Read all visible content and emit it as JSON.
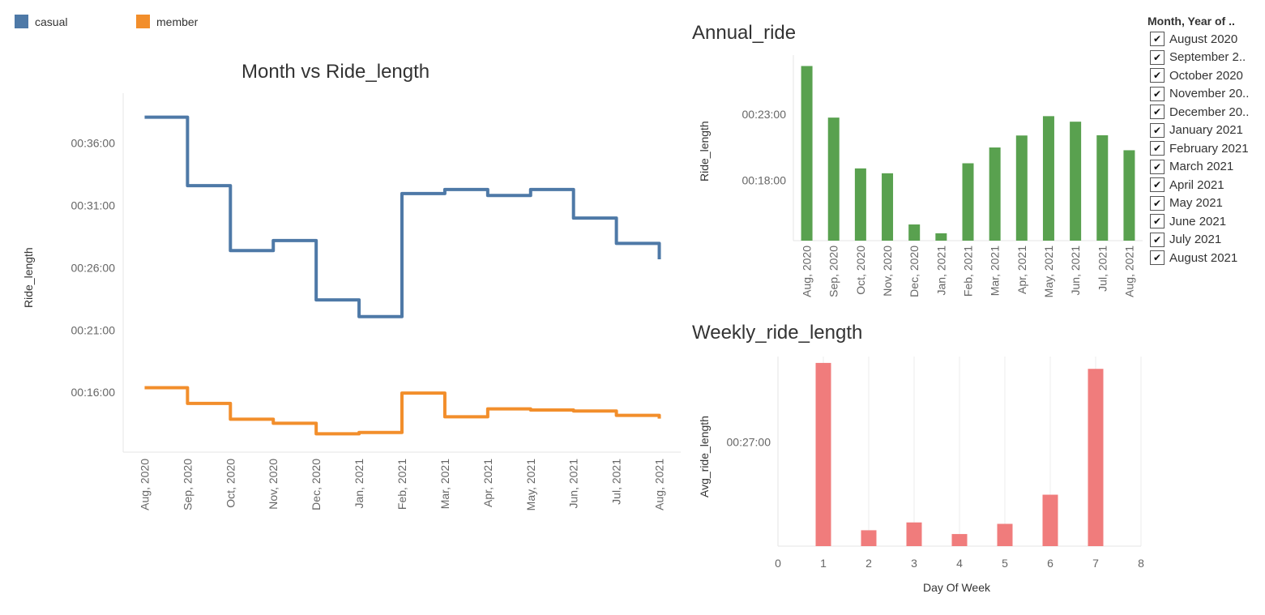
{
  "legend": [
    {
      "label": "casual",
      "color": "#4e79a7"
    },
    {
      "label": "member",
      "color": "#f28e2b"
    }
  ],
  "filter": {
    "title": "Month, Year of ..",
    "check_glyph": "✔",
    "items": [
      {
        "label": "August 2020",
        "checked": true
      },
      {
        "label": "September 2..",
        "checked": true
      },
      {
        "label": "October 2020",
        "checked": true
      },
      {
        "label": "November 20..",
        "checked": true
      },
      {
        "label": "December 20..",
        "checked": true
      },
      {
        "label": "January 2021",
        "checked": true
      },
      {
        "label": "February 2021",
        "checked": true
      },
      {
        "label": "March 2021",
        "checked": true
      },
      {
        "label": "April 2021",
        "checked": true
      },
      {
        "label": "May 2021",
        "checked": true
      },
      {
        "label": "June 2021",
        "checked": true
      },
      {
        "label": "July 2021",
        "checked": true
      },
      {
        "label": "August 2021",
        "checked": true
      }
    ]
  },
  "chart_data": [
    {
      "id": "month_vs_ride_length",
      "type": "line",
      "step": true,
      "title": "Month vs Ride_length",
      "xlabel": "",
      "ylabel": "Ride_length",
      "categories": [
        "Aug, 2020",
        "Sep, 2020",
        "Oct, 2020",
        "Nov, 2020",
        "Dec, 2020",
        "Jan, 2021",
        "Feb, 2021",
        "Mar, 2021",
        "Apr, 2021",
        "May, 2021",
        "Jun, 2021",
        "Jul, 2021",
        "Aug, 2021"
      ],
      "series": [
        {
          "name": "casual",
          "color": "#4e79a7",
          "values_minutes": [
            38.07,
            32.58,
            27.37,
            28.18,
            23.41,
            22.07,
            31.95,
            32.27,
            31.79,
            32.27,
            29.98,
            27.95,
            26.67
          ]
        },
        {
          "name": "member",
          "color": "#f28e2b",
          "values_minutes": [
            16.37,
            15.11,
            13.84,
            13.52,
            12.67,
            12.78,
            15.94,
            14.04,
            14.67,
            14.58,
            14.5,
            14.15,
            13.89
          ]
        }
      ],
      "yticks": [
        "00:16:00",
        "00:21:00",
        "00:26:00",
        "00:31:00",
        "00:36:00"
      ],
      "ytick_minutes": [
        16,
        21,
        26,
        31,
        36
      ],
      "ylim_minutes": [
        11.2,
        40.0
      ],
      "grid": false
    },
    {
      "id": "annual_ride",
      "type": "bar",
      "title": "Annual_ride",
      "xlabel": "",
      "ylabel": "Ride_length",
      "color": "#59a14f",
      "categories": [
        "Aug, 2020",
        "Sep, 2020",
        "Oct, 2020",
        "Nov, 2020",
        "Dec, 2020",
        "Jan, 2021",
        "Feb, 2021",
        "Mar, 2021",
        "Apr, 2021",
        "May, 2021",
        "Jun, 2021",
        "Jul, 2021",
        "Aug, 2021"
      ],
      "values_minutes": [
        26.67,
        22.75,
        18.89,
        18.52,
        14.63,
        13.96,
        19.28,
        20.48,
        21.39,
        22.86,
        22.44,
        21.41,
        20.27
      ],
      "yticks": [
        "00:18:00",
        "00:23:00"
      ],
      "ytick_minutes": [
        18,
        23
      ],
      "ylim_minutes": [
        13.4,
        27.5
      ],
      "grid": false
    },
    {
      "id": "weekly_ride_length",
      "type": "bar",
      "title": "Weekly_ride_length",
      "xlabel": "Day Of Week",
      "ylabel": "Avg_ride_length",
      "color": "#f07c7c",
      "x": [
        1,
        2,
        3,
        4,
        5,
        6,
        7
      ],
      "values_minutes": [
        30.33,
        23.27,
        23.6,
        23.11,
        23.54,
        24.77,
        30.08
      ],
      "xticks": [
        "0",
        "1",
        "2",
        "3",
        "4",
        "5",
        "6",
        "7",
        "8"
      ],
      "xlim": [
        0,
        8
      ],
      "yticks": [
        "00:27:00"
      ],
      "ytick_minutes": [
        27
      ],
      "ylim_minutes": [
        22.6,
        30.6
      ],
      "grid": true
    }
  ]
}
